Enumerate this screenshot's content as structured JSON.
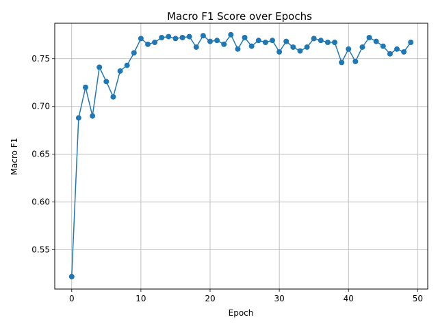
{
  "chart_data": {
    "type": "line",
    "title": "Macro F1 Score over Epochs",
    "xlabel": "Epoch",
    "ylabel": "Macro F1",
    "xlim": [
      -2.45,
      51.45
    ],
    "ylim": [
      0.509,
      0.787
    ],
    "xticks": [
      0,
      10,
      20,
      30,
      40,
      50
    ],
    "yticks": [
      0.55,
      0.6,
      0.65,
      0.7,
      0.75
    ],
    "ytick_format": 2,
    "grid": true,
    "color": "#1f77b4",
    "marker": "circle",
    "series": [
      {
        "x": [
          0,
          1,
          2,
          3,
          4,
          5,
          6,
          7,
          8,
          9,
          10,
          11,
          12,
          13,
          14,
          15,
          16,
          17,
          18,
          19,
          20,
          21,
          22,
          23,
          24,
          25,
          26,
          27,
          28,
          29,
          30,
          31,
          32,
          33,
          34,
          35,
          36,
          37,
          38,
          39,
          40,
          41,
          42,
          43,
          44,
          45,
          46,
          47,
          48,
          49
        ],
        "values": [
          0.522,
          0.688,
          0.72,
          0.69,
          0.741,
          0.726,
          0.71,
          0.737,
          0.743,
          0.756,
          0.771,
          0.765,
          0.767,
          0.772,
          0.773,
          0.771,
          0.772,
          0.773,
          0.762,
          0.774,
          0.768,
          0.769,
          0.765,
          0.775,
          0.76,
          0.772,
          0.763,
          0.769,
          0.767,
          0.769,
          0.757,
          0.768,
          0.762,
          0.758,
          0.762,
          0.771,
          0.769,
          0.767,
          0.767,
          0.746,
          0.76,
          0.747,
          0.762,
          0.772,
          0.768,
          0.763,
          0.755,
          0.76,
          0.757,
          0.767
        ]
      }
    ]
  }
}
